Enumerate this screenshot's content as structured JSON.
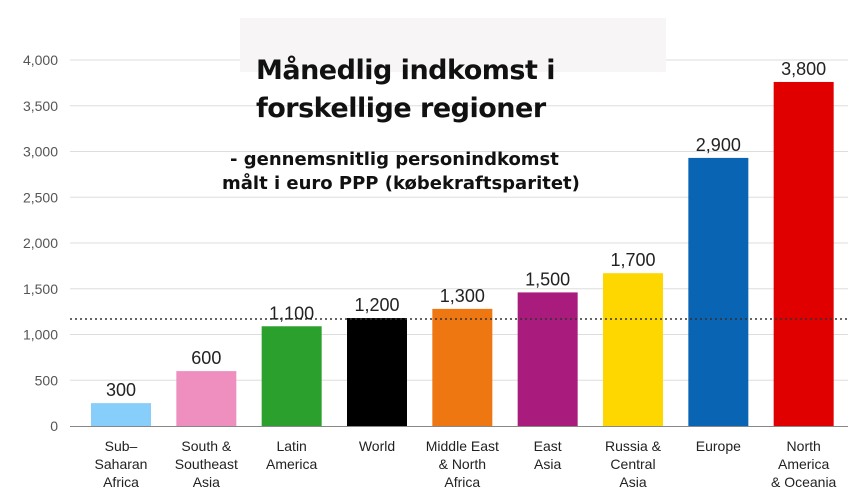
{
  "chart_data": {
    "type": "bar",
    "title_lines": [
      "Månedlig indkomst i",
      "forskellige regioner"
    ],
    "subtitle_lines": [
      "- gennemsnitlig personindkomst",
      "målt i euro PPP (købekraftsparitet)"
    ],
    "categories": [
      [
        "Sub–",
        "Saharan",
        "Africa"
      ],
      [
        "South &",
        "Southeast",
        "Asia"
      ],
      [
        "Latin",
        "America"
      ],
      [
        "World"
      ],
      [
        "Middle East",
        "& North",
        "Africa"
      ],
      [
        "East",
        "Asia"
      ],
      [
        "Russia &",
        "Central",
        "Asia"
      ],
      [
        "Europe"
      ],
      [
        "North",
        "America",
        "& Oceania"
      ]
    ],
    "values": [
      300,
      600,
      1100,
      1200,
      1300,
      1500,
      1700,
      2900,
      3800
    ],
    "plotted_values": [
      250,
      600,
      1090,
      1180,
      1280,
      1460,
      1670,
      2930,
      3760
    ],
    "value_labels": [
      "300",
      "600",
      "1,100",
      "1,200",
      "1,300",
      "1,500",
      "1,700",
      "2,900",
      "3,800"
    ],
    "colors": [
      "#87cefa",
      "#ee8fc0",
      "#2ca02c",
      "#000000",
      "#ee7711",
      "#a91b7c",
      "#ffd700",
      "#0a64b4",
      "#e00000"
    ],
    "yticks": [
      "0",
      "500",
      "1,000",
      "1,500",
      "2,000",
      "2,500",
      "3,000",
      "3,500",
      "4,000"
    ],
    "ylim": [
      0,
      4000
    ],
    "reference_line": 1170,
    "grid": true,
    "xlabel": "",
    "ylabel": ""
  }
}
